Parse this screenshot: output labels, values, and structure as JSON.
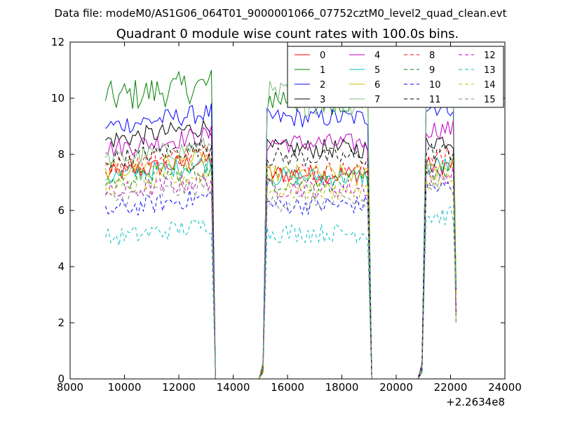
{
  "header": {
    "data_file": "Data file: modeM0/AS1G06_064T01_9000001066_07752cztM0_level2_quad_clean.evt"
  },
  "chart_data": {
    "type": "line",
    "title": "Quadrant 0 module wise count rates with 100.0s bins.",
    "xlabel": "",
    "ylabel": "",
    "xlim": [
      8000,
      24000
    ],
    "ylim": [
      0,
      12
    ],
    "x_offset_label": "+2.2634e8",
    "x_ticks": [
      8000,
      10000,
      12000,
      14000,
      16000,
      18000,
      20000,
      22000,
      24000
    ],
    "x_tick_labels": [
      "8000",
      "10000",
      "12000",
      "14000",
      "16000",
      "18000",
      "20000",
      "22000",
      "24000"
    ],
    "y_ticks": [
      0,
      2,
      4,
      6,
      8,
      10,
      12
    ],
    "y_tick_labels": [
      "0",
      "2",
      "4",
      "6",
      "8",
      "10",
      "12"
    ],
    "grid": false,
    "legend_position": "top-right",
    "legend_columns": 4,
    "segments": [
      {
        "x_start": 9400,
        "x_end": 13200,
        "drop_end": 13350
      },
      {
        "x_start": 15250,
        "x_end": 18950,
        "drop_end": 19100,
        "rise_start": 15100
      },
      {
        "x_start": 21100,
        "x_end": 22150,
        "rise_start": 20950
      }
    ],
    "series": [
      {
        "name": "0",
        "color": "#ff0000",
        "dashed": false,
        "seg_levels": [
          7.3,
          7.3,
          7.6
        ]
      },
      {
        "name": "1",
        "color": "#008000",
        "dashed": false,
        "seg_levels": [
          10.0,
          10.0,
          10.4
        ]
      },
      {
        "name": "2",
        "color": "#0000ff",
        "dashed": false,
        "seg_levels": [
          9.0,
          9.3,
          9.7
        ]
      },
      {
        "name": "3",
        "color": "#000000",
        "dashed": false,
        "seg_levels": [
          8.5,
          8.2,
          8.5
        ]
      },
      {
        "name": "4",
        "color": "#bf00bf",
        "dashed": false,
        "seg_levels": [
          8.2,
          8.4,
          8.9
        ]
      },
      {
        "name": "5",
        "color": "#00bfbf",
        "dashed": false,
        "seg_levels": [
          7.2,
          7.2,
          7.6
        ]
      },
      {
        "name": "6",
        "color": "#bfbf00",
        "dashed": false,
        "seg_levels": [
          7.4,
          7.3,
          7.6
        ]
      },
      {
        "name": "7",
        "color": "#77bb77",
        "dashed": false,
        "seg_levels": [
          7.8,
          10.0,
          10.2
        ]
      },
      {
        "name": "8",
        "color": "#ff0000",
        "dashed": true,
        "seg_levels": [
          7.6,
          7.4,
          7.9
        ]
      },
      {
        "name": "9",
        "color": "#008000",
        "dashed": true,
        "seg_levels": [
          7.0,
          7.0,
          7.4
        ]
      },
      {
        "name": "10",
        "color": "#0000ff",
        "dashed": true,
        "seg_levels": [
          6.0,
          6.2,
          6.8
        ]
      },
      {
        "name": "11",
        "color": "#000000",
        "dashed": true,
        "seg_levels": [
          7.8,
          7.9,
          8.1
        ]
      },
      {
        "name": "12",
        "color": "#bf00bf",
        "dashed": true,
        "seg_levels": [
          6.6,
          6.8,
          7.3
        ]
      },
      {
        "name": "13",
        "color": "#00bfbf",
        "dashed": true,
        "seg_levels": [
          5.0,
          5.2,
          5.8
        ]
      },
      {
        "name": "14",
        "color": "#bfbf00",
        "dashed": true,
        "seg_levels": [
          6.8,
          6.7,
          7.1
        ]
      },
      {
        "name": "15",
        "color": "#808080",
        "dashed": true,
        "seg_levels": [
          6.4,
          6.3,
          6.9
        ]
      }
    ]
  }
}
